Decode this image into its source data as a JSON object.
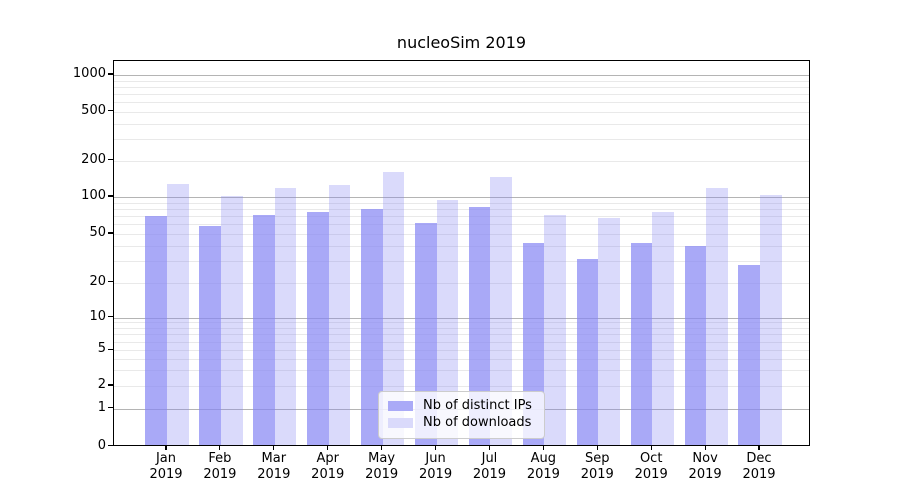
{
  "chart_data": {
    "type": "bar",
    "title": "nucleoSim 2019",
    "categories": [
      "Jan 2019",
      "Feb 2019",
      "Mar 2019",
      "Apr 2019",
      "May 2019",
      "Jun 2019",
      "Jul 2019",
      "Aug 2019",
      "Sep 2019",
      "Oct 2019",
      "Nov 2019",
      "Dec 2019"
    ],
    "series": [
      {
        "name": "Nb of distinct IPs",
        "values": [
          70,
          58,
          72,
          76,
          80,
          61,
          83,
          42,
          31,
          42,
          40,
          28
        ],
        "fill": "rgba(133,133,243,0.7)",
        "legend_color": "#aaaaf7"
      },
      {
        "name": "Nb of downloads",
        "values": [
          129,
          102,
          118,
          126,
          162,
          94,
          147,
          71,
          67,
          76,
          118,
          104
        ],
        "fill": "rgba(133,133,243,0.3)",
        "legend_color": "#dadafb"
      }
    ],
    "xlabel": "",
    "ylabel": "",
    "yscale": "symlog",
    "yticks": [
      1000,
      500,
      200,
      100,
      50,
      20,
      10,
      5,
      2,
      1,
      0
    ],
    "ylim": [
      0,
      1300
    ],
    "grid": "horizontal, log minor and major gridlines",
    "legend_position": "lower center inside plot"
  },
  "colors": {
    "grid_minor": "#e9e9e9",
    "grid_major": "#b4b4b4",
    "spine": "#000000",
    "background": "#ffffff"
  }
}
